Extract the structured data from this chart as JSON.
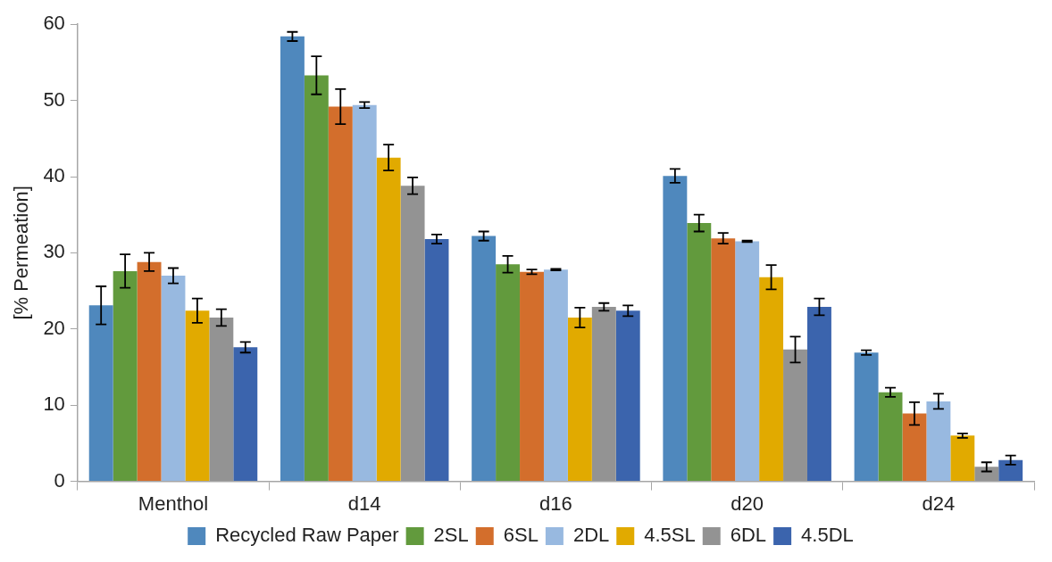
{
  "chart_data": {
    "type": "bar",
    "ylabel": "[% Permeation]",
    "categories": [
      "Menthol",
      "d14",
      "d16",
      "d20",
      "d24"
    ],
    "ylim": [
      0,
      60
    ],
    "yticks": [
      0,
      10,
      20,
      30,
      40,
      50,
      60
    ],
    "grid": false,
    "legend": "bottom",
    "series": [
      {
        "name": "Recycled Raw Paper",
        "color": "#4f88bd",
        "values": [
          23.1,
          58.4,
          32.2,
          40.1,
          16.9
        ],
        "errors": [
          2.5,
          0.6,
          0.6,
          0.9,
          0.3
        ]
      },
      {
        "name": "2SL",
        "color": "#629a3d",
        "values": [
          27.6,
          53.3,
          28.5,
          33.9,
          11.7
        ],
        "errors": [
          2.2,
          2.5,
          1.1,
          1.1,
          0.6
        ]
      },
      {
        "name": "6SL",
        "color": "#d36e2c",
        "values": [
          28.8,
          49.2,
          27.5,
          31.9,
          8.9
        ],
        "errors": [
          1.2,
          2.3,
          0.3,
          0.7,
          1.5
        ]
      },
      {
        "name": "2DL",
        "color": "#98b9e0",
        "values": [
          27.0,
          49.4,
          27.8,
          31.5,
          10.5
        ],
        "errors": [
          1.0,
          0.4,
          0.1,
          0.1,
          1.0
        ]
      },
      {
        "name": "4.5SL",
        "color": "#e1aa00",
        "values": [
          22.4,
          42.5,
          21.5,
          26.8,
          6.0
        ],
        "errors": [
          1.6,
          1.7,
          1.3,
          1.6,
          0.3
        ]
      },
      {
        "name": "6DL",
        "color": "#939393",
        "values": [
          21.5,
          38.8,
          22.9,
          17.3,
          1.9
        ],
        "errors": [
          1.1,
          1.1,
          0.5,
          1.7,
          0.6
        ]
      },
      {
        "name": "4.5DL",
        "color": "#3b64ad",
        "values": [
          17.6,
          31.8,
          22.4,
          22.9,
          2.8
        ],
        "errors": [
          0.7,
          0.6,
          0.7,
          1.1,
          0.6
        ]
      }
    ]
  }
}
